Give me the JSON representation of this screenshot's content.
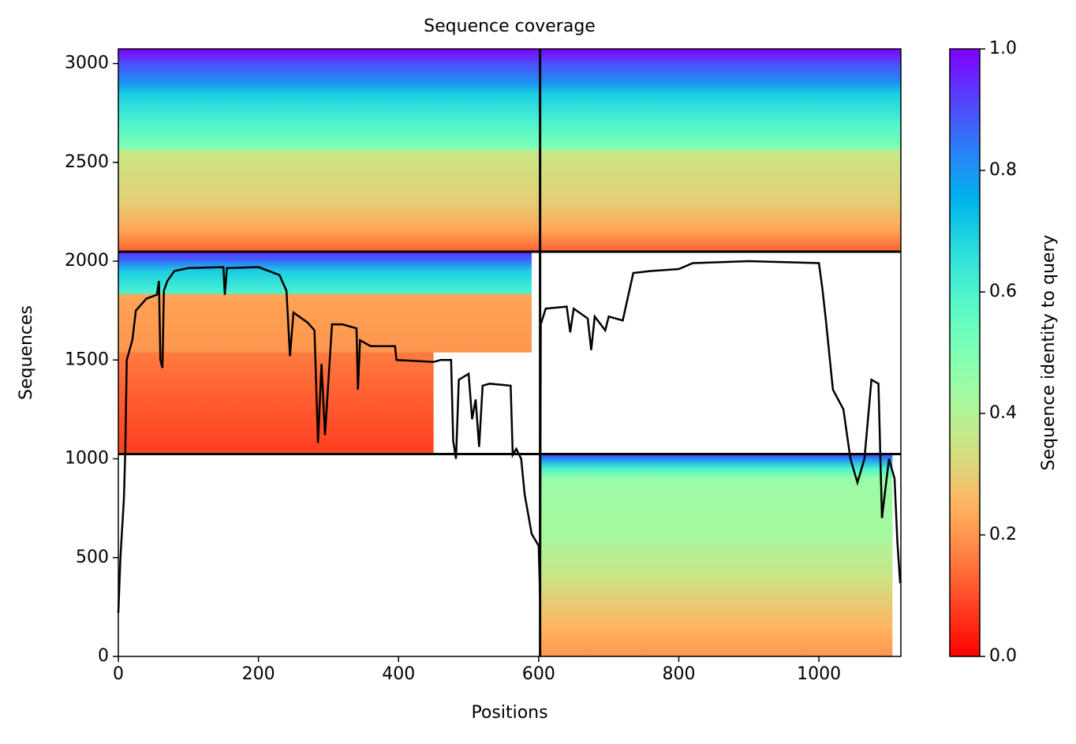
{
  "chart_data": {
    "type": "coverage",
    "title": "Sequence coverage",
    "x_label": "Positions",
    "y_label": "Sequences",
    "colorbar_label": "Sequence identity to query",
    "xlim": [
      0,
      1117
    ],
    "ylim": [
      0,
      3074
    ],
    "xticks": [
      0,
      200,
      400,
      600,
      800,
      1000
    ],
    "yticks": [
      0,
      500,
      1000,
      1500,
      2000,
      2500,
      3000
    ],
    "colorbar_lim": [
      0,
      1
    ],
    "colorbar_ticks": [
      {
        "value": 0,
        "label": "0.0"
      },
      {
        "value": 0.2,
        "label": "0.2"
      },
      {
        "value": 0.4,
        "label": "0.4"
      },
      {
        "value": 0.6,
        "label": "0.6"
      },
      {
        "value": 0.8,
        "label": "0.8"
      },
      {
        "value": 1,
        "label": "1.0"
      }
    ],
    "colormap": "rainbow_r",
    "separators": {
      "seq": [
        1024,
        2048
      ],
      "pos": [
        602
      ]
    },
    "line_color": "#000000",
    "blocks": [
      {
        "x": [
          0,
          1117
        ],
        "rows": [
          {
            "seq": 2048,
            "identity": 0.12
          },
          {
            "seq": 2150,
            "identity": 0.22
          },
          {
            "seq": 2300,
            "identity": 0.3
          },
          {
            "seq": 2560,
            "identity": 0.36
          },
          {
            "seq": 2570,
            "identity": 0.5
          },
          {
            "seq": 2700,
            "identity": 0.6
          },
          {
            "seq": 2850,
            "identity": 0.7
          },
          {
            "seq": 2900,
            "identity": 0.8
          },
          {
            "seq": 3000,
            "identity": 0.9
          },
          {
            "seq": 3074,
            "identity": 1.0
          }
        ]
      },
      {
        "x": [
          0,
          450
        ],
        "rows": [
          {
            "seq": 1024,
            "identity": 0.08
          },
          {
            "seq": 1300,
            "identity": 0.12
          },
          {
            "seq": 1540,
            "identity": 0.16
          }
        ]
      },
      {
        "x": [
          0,
          590
        ],
        "rows": [
          {
            "seq": 1540,
            "identity": 0.2
          },
          {
            "seq": 1830,
            "identity": 0.22
          },
          {
            "seq": 1840,
            "identity": 0.6
          },
          {
            "seq": 1950,
            "identity": 0.7
          },
          {
            "seq": 2000,
            "identity": 0.85
          },
          {
            "seq": 2048,
            "identity": 0.95
          }
        ]
      },
      {
        "x": [
          602,
          1105
        ],
        "rows": [
          {
            "seq": 0,
            "identity": 0.2
          },
          {
            "seq": 150,
            "identity": 0.25
          },
          {
            "seq": 400,
            "identity": 0.35
          },
          {
            "seq": 600,
            "identity": 0.42
          },
          {
            "seq": 900,
            "identity": 0.45
          },
          {
            "seq": 950,
            "identity": 0.6
          },
          {
            "seq": 1000,
            "identity": 0.8
          },
          {
            "seq": 1024,
            "identity": 0.95
          }
        ]
      }
    ],
    "coverage": {
      "x": [
        0,
        3,
        8,
        10,
        12,
        20,
        25,
        40,
        55,
        58,
        60,
        63,
        65,
        70,
        80,
        100,
        150,
        152,
        155,
        200,
        230,
        240,
        245,
        250,
        270,
        280,
        285,
        290,
        295,
        300,
        305,
        320,
        340,
        342,
        345,
        360,
        395,
        397,
        450,
        460,
        475,
        478,
        482,
        486,
        500,
        505,
        510,
        515,
        520,
        530,
        560,
        563,
        568,
        575,
        580,
        590,
        600,
        602,
        603,
        610,
        640,
        645,
        650,
        670,
        675,
        680,
        695,
        700,
        720,
        735,
        760,
        800,
        820,
        900,
        1000,
        1005,
        1010,
        1020,
        1035,
        1045,
        1055,
        1065,
        1075,
        1085,
        1090,
        1100,
        1108,
        1112,
        1116
      ],
      "values": [
        220,
        500,
        800,
        1050,
        1500,
        1600,
        1750,
        1810,
        1830,
        1900,
        1500,
        1460,
        1850,
        1900,
        1950,
        1965,
        1970,
        1830,
        1965,
        1970,
        1930,
        1850,
        1520,
        1740,
        1690,
        1650,
        1080,
        1480,
        1120,
        1400,
        1680,
        1680,
        1660,
        1350,
        1600,
        1570,
        1570,
        1500,
        1490,
        1500,
        1500,
        1090,
        1000,
        1400,
        1430,
        1200,
        1300,
        1060,
        1370,
        1380,
        1370,
        1020,
        1050,
        1000,
        820,
        620,
        560,
        300,
        1680,
        1760,
        1770,
        1640,
        1760,
        1710,
        1550,
        1720,
        1650,
        1720,
        1700,
        1940,
        1950,
        1960,
        1990,
        2000,
        1990,
        1860,
        1700,
        1350,
        1250,
        1000,
        880,
        1000,
        1400,
        1380,
        700,
        1000,
        900,
        580,
        370
      ]
    }
  }
}
